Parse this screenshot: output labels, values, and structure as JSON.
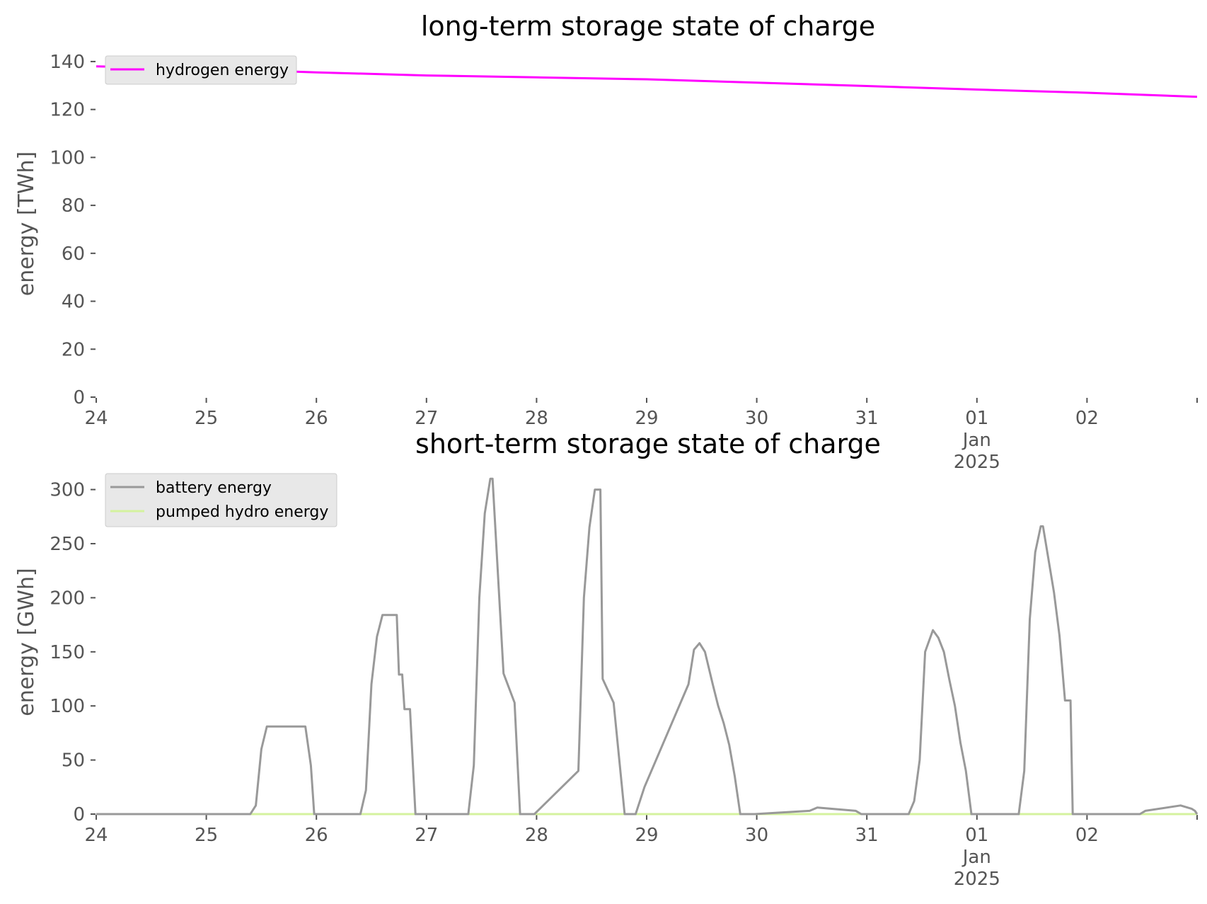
{
  "chart_data": [
    {
      "type": "line",
      "title": "long-term storage state of charge",
      "ylabel": "energy [TWh]",
      "xlabel": "",
      "xlim": [
        "2024-12-24 00:00",
        "2025-01-03 00:00"
      ],
      "ylim": [
        0,
        145
      ],
      "yticks": [
        "0",
        "20",
        "40",
        "60",
        "80",
        "100",
        "120",
        "140"
      ],
      "xtick_labels": [
        "24",
        "25",
        "26",
        "27",
        "28",
        "29",
        "30",
        "31",
        "01\nJan\n2025",
        "02"
      ],
      "legend_position": "top-left",
      "grid": false,
      "series": [
        {
          "name": "hydrogen energy",
          "color": "#ff00ff",
          "x": [
            "2024-12-24 00:00",
            "2024-12-25 00:00",
            "2024-12-26 00:00",
            "2024-12-27 00:00",
            "2024-12-28 00:00",
            "2024-12-29 00:00",
            "2024-12-30 00:00",
            "2024-12-31 00:00",
            "2025-01-01 00:00",
            "2025-01-02 00:00",
            "2025-01-03 00:00"
          ],
          "values": [
            138,
            137,
            135.5,
            134.2,
            133.4,
            132.6,
            131.2,
            129.8,
            128.3,
            127,
            125.3
          ]
        }
      ]
    },
    {
      "type": "line",
      "title": "short-term storage state of charge",
      "ylabel": "energy [GWh]",
      "xlabel": "",
      "xlim": [
        "2024-12-24 00:00",
        "2025-01-03 00:00"
      ],
      "ylim": [
        0,
        320
      ],
      "yticks": [
        "0",
        "50",
        "100",
        "150",
        "200",
        "250",
        "300"
      ],
      "xtick_labels": [
        "24",
        "25",
        "26",
        "27",
        "28",
        "29",
        "30",
        "31",
        "01\nJan\n2025",
        "02"
      ],
      "legend_position": "top-left",
      "grid": false,
      "series": [
        {
          "name": "battery energy",
          "color": "#999999",
          "x": [
            "2024-12-24 00:00",
            "2024-12-25 09:36",
            "2024-12-25 10:48",
            "2024-12-25 12:00",
            "2024-12-25 13:12",
            "2024-12-25 21:36",
            "2024-12-25 22:48",
            "2024-12-25 23:31",
            "2024-12-26 09:36",
            "2024-12-26 10:48",
            "2024-12-26 12:00",
            "2024-12-26 13:12",
            "2024-12-26 14:24",
            "2024-12-26 17:31",
            "2024-12-26 18:00",
            "2024-12-26 18:43",
            "2024-12-26 19:12",
            "2024-12-26 20:24",
            "2024-12-26 21:36",
            "2024-12-26 23:31",
            "2024-12-27 09:07",
            "2024-12-27 10:19",
            "2024-12-27 11:31",
            "2024-12-27 12:43",
            "2024-12-27 13:55",
            "2024-12-27 14:24",
            "2024-12-27 16:48",
            "2024-12-27 19:12",
            "2024-12-27 20:24",
            "2024-12-27 21:36",
            "2024-12-27 23:31",
            "2024-12-28 09:07",
            "2024-12-28 10:19",
            "2024-12-28 11:31",
            "2024-12-28 12:43",
            "2024-12-28 13:55",
            "2024-12-28 14:24",
            "2024-12-28 16:48",
            "2024-12-28 19:12",
            "2024-12-28 20:24",
            "2024-12-28 21:36",
            "2024-12-28 23:31",
            "2024-12-29 09:07",
            "2024-12-29 10:19",
            "2024-12-29 11:31",
            "2024-12-29 12:43",
            "2024-12-29 14:24",
            "2024-12-29 15:36",
            "2024-12-29 16:48",
            "2024-12-29 18:00",
            "2024-12-29 19:12",
            "2024-12-29 20:24",
            "2024-12-29 21:36",
            "2024-12-29 22:48",
            "2024-12-29 23:31",
            "2024-12-30 11:31",
            "2024-12-30 13:12",
            "2024-12-30 21:36",
            "2024-12-30 22:48",
            "2024-12-30 23:31",
            "2024-12-31 09:07",
            "2024-12-31 10:19",
            "2024-12-31 11:31",
            "2024-12-31 12:43",
            "2024-12-31 14:24",
            "2024-12-31 15:36",
            "2024-12-31 16:48",
            "2024-12-31 18:00",
            "2024-12-31 19:12",
            "2024-12-31 20:24",
            "2024-12-31 21:36",
            "2024-12-31 22:48",
            "2024-12-31 23:31",
            "2025-01-01 09:07",
            "2025-01-01 10:19",
            "2025-01-01 11:31",
            "2025-01-01 12:43",
            "2025-01-01 13:55",
            "2025-01-01 14:24",
            "2025-01-01 16:48",
            "2025-01-01 18:00",
            "2025-01-01 19:12",
            "2025-01-01 20:24",
            "2025-01-01 20:53",
            "2025-01-01 21:22",
            "2025-01-01 23:31",
            "2025-01-02 11:31",
            "2025-01-02 12:43",
            "2025-01-02 20:24",
            "2025-01-02 22:48",
            "2025-01-02 23:31",
            "2025-01-03 00:00"
          ],
          "values": [
            0,
            0,
            8,
            60,
            81,
            81,
            45,
            0,
            0,
            22,
            120,
            164,
            184,
            184,
            129,
            129,
            97,
            97,
            0,
            0,
            0,
            45,
            200,
            278,
            310,
            310,
            130,
            103,
            0,
            0,
            0,
            40,
            200,
            265,
            300,
            300,
            125,
            103,
            0,
            0,
            0,
            25,
            120,
            152,
            158,
            150,
            120,
            100,
            84,
            64,
            35,
            0,
            0,
            0,
            0,
            3,
            6,
            3,
            0,
            0,
            0,
            12,
            50,
            150,
            170,
            163,
            150,
            124,
            100,
            66,
            40,
            0,
            0,
            0,
            40,
            180,
            242,
            266,
            266,
            205,
            165,
            105,
            105,
            0,
            0,
            0,
            0,
            3,
            8,
            5,
            3,
            0
          ]
        },
        {
          "name": "pumped hydro energy",
          "color": "#d4f29e",
          "x": [
            "2024-12-24 00:00",
            "2025-01-03 00:00"
          ],
          "values": [
            0,
            0
          ]
        }
      ]
    }
  ]
}
